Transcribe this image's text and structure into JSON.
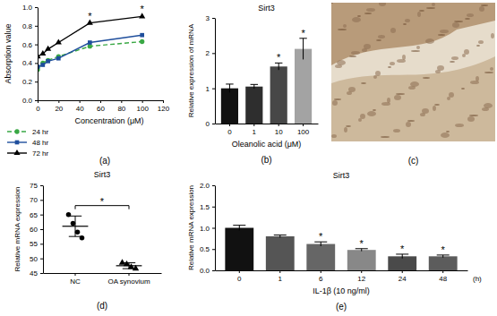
{
  "chart_data": [
    {
      "type": "line",
      "panel_label": "(a)",
      "x_label": "Concentration (μM)",
      "y_label": "Absorption value",
      "xlim": [
        0,
        120
      ],
      "xticks": [
        0,
        20,
        40,
        60,
        80,
        100,
        120
      ],
      "ylim": [
        0,
        1.0
      ],
      "yticks": [
        {
          "value": 0,
          "label": "0.0"
        },
        0.2,
        0.4,
        0.6,
        0.8,
        {
          "value": 1.0,
          "label": "1.0"
        }
      ],
      "x": [
        0,
        5,
        10,
        20,
        50,
        100
      ],
      "legend": "bottom-left",
      "series": [
        {
          "name": "24 hr",
          "color": "#3aa845",
          "line_style": "dashed",
          "marker": "circle",
          "values": [
            0.33,
            0.4,
            0.43,
            0.47,
            0.58,
            0.63
          ]
        },
        {
          "name": "48 hr",
          "color": "#1f4e9c",
          "line_style": "solid",
          "marker": "square",
          "values": [
            0.36,
            0.38,
            0.42,
            0.45,
            0.62,
            0.7
          ]
        },
        {
          "name": "72 hr",
          "color": "#000000",
          "line_style": "solid",
          "marker": "triangle",
          "values": [
            0.47,
            0.5,
            0.55,
            0.62,
            0.83,
            0.9
          ],
          "annotations": [
            null,
            null,
            null,
            null,
            "*",
            "*"
          ]
        }
      ]
    },
    {
      "type": "bar",
      "panel_label": "(b)",
      "title": "Sirt3",
      "x_label": "Oleanolic acid (μM)",
      "y_label": "Relative expression of mRNA",
      "categories": [
        "0",
        "1",
        "10",
        "100"
      ],
      "values": [
        1.0,
        1.05,
        1.62,
        2.12
      ],
      "errors": [
        0.12,
        0.06,
        0.1,
        0.3
      ],
      "annotations": [
        null,
        null,
        "*",
        "*"
      ],
      "colors": [
        "#111111",
        "#2e2e2e",
        "#474747",
        "#a3a3a3"
      ],
      "ylim": [
        0,
        3
      ],
      "yticks": [
        0,
        1,
        2,
        3
      ]
    },
    {
      "type": "image",
      "panel_label": "(c)"
    },
    {
      "type": "dot",
      "panel_label": "(d)",
      "title": "Sirt3",
      "y_label": "Relative mRNA expression",
      "categories": [
        "NC",
        "OA synovium"
      ],
      "points": [
        [
          65,
          62,
          59,
          57
        ],
        [
          48.5,
          48,
          47,
          46.5
        ]
      ],
      "means": [
        61,
        47.5
      ],
      "errors": [
        3.5,
        1
      ],
      "markers": [
        "circle",
        "triangle"
      ],
      "color": "#000000",
      "annotation": "*",
      "ylim": [
        45,
        75
      ],
      "yticks": [
        45,
        50,
        55,
        60,
        65,
        70,
        75
      ]
    },
    {
      "type": "bar",
      "panel_label": "(e)",
      "title": "Sirt3",
      "x_label": "IL-1β (10 ng/ml)",
      "x_unit": "(h)",
      "y_label": "Relative mRNA expression",
      "categories": [
        "0",
        "1",
        "6",
        "12",
        "24",
        "48"
      ],
      "values": [
        1.0,
        0.8,
        0.62,
        0.48,
        0.33,
        0.33
      ],
      "errors": [
        0.06,
        0.03,
        0.05,
        0.03,
        0.05,
        0.03
      ],
      "annotations": [
        null,
        null,
        "*",
        "*",
        "*",
        "*"
      ],
      "colors": [
        "#111111",
        "#555555",
        "#666666",
        "#888888",
        "#4a4a4a",
        "#5c5c5c"
      ],
      "ylim": [
        0,
        2.0
      ],
      "yticks": [
        {
          "value": 0,
          "label": "0.0"
        },
        0.5,
        {
          "value": 1,
          "label": "1.0"
        },
        1.5,
        {
          "value": 2,
          "label": "2.0"
        }
      ]
    }
  ]
}
